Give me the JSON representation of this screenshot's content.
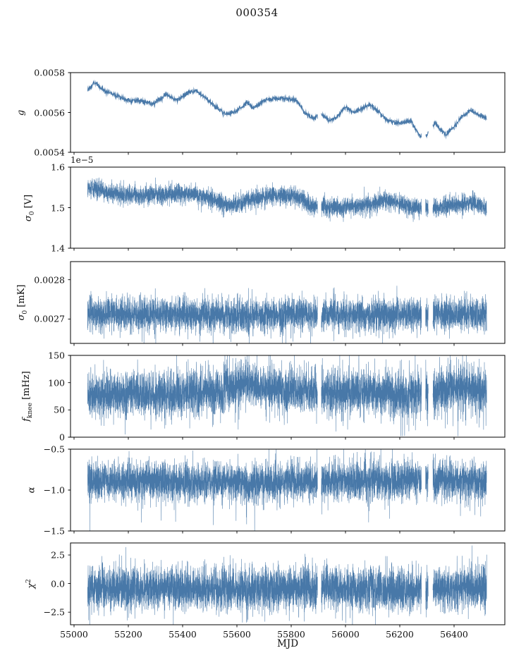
{
  "chart_data": {
    "type": "line",
    "title": "000354",
    "xlabel": "MJD",
    "color": "#4878a8",
    "x_range": [
      54987,
      56587
    ],
    "x_data_range": [
      55050,
      56520
    ],
    "x_ticks": [
      {
        "v": 55000,
        "label": "55000"
      },
      {
        "v": 55200,
        "label": "55200"
      },
      {
        "v": 55400,
        "label": "55400"
      },
      {
        "v": 55600,
        "label": "55600"
      },
      {
        "v": 55800,
        "label": "55800"
      },
      {
        "v": 56000,
        "label": "56000"
      },
      {
        "v": 56200,
        "label": "56200"
      },
      {
        "v": 56400,
        "label": "56400"
      }
    ],
    "gaps": [
      [
        55897,
        55911
      ],
      [
        56280,
        56295
      ],
      [
        56305,
        56322
      ]
    ],
    "legend": "none",
    "grid": false,
    "shared_x": true,
    "panels": [
      {
        "name": "g",
        "ylabel": {
          "pre": "g"
        },
        "ylim": [
          0.0054,
          0.0058
        ],
        "yticks": [
          {
            "v": 0.0058,
            "label": "0.0058"
          },
          {
            "v": 0.0056,
            "label": "0.0056"
          },
          {
            "v": 0.0054,
            "label": "0.0054"
          }
        ],
        "noise": 6e-06,
        "trend": [
          [
            55050,
            0.00571
          ],
          [
            55075,
            0.00575
          ],
          [
            55110,
            0.00571
          ],
          [
            55150,
            0.00569
          ],
          [
            55200,
            0.00566
          ],
          [
            55250,
            0.00566
          ],
          [
            55290,
            0.00564
          ],
          [
            55340,
            0.00569
          ],
          [
            55380,
            0.00566
          ],
          [
            55420,
            0.0057
          ],
          [
            55450,
            0.00571
          ],
          [
            55480,
            0.00568
          ],
          [
            55520,
            0.00563
          ],
          [
            55560,
            0.00559
          ],
          [
            55600,
            0.00561
          ],
          [
            55640,
            0.00565
          ],
          [
            55660,
            0.00562
          ],
          [
            55700,
            0.00566
          ],
          [
            55740,
            0.00567
          ],
          [
            55780,
            0.00567
          ],
          [
            55820,
            0.00566
          ],
          [
            55850,
            0.0056
          ],
          [
            55880,
            0.00557
          ],
          [
            55910,
            0.00559
          ],
          [
            55940,
            0.00556
          ],
          [
            55970,
            0.00558
          ],
          [
            56000,
            0.00563
          ],
          [
            56030,
            0.0056
          ],
          [
            56060,
            0.00562
          ],
          [
            56090,
            0.00564
          ],
          [
            56120,
            0.00561
          ],
          [
            56150,
            0.00556
          ],
          [
            56180,
            0.00555
          ],
          [
            56210,
            0.00555
          ],
          [
            56240,
            0.00556
          ],
          [
            56270,
            0.00549
          ],
          [
            56290,
            0.00547
          ],
          [
            56310,
            0.00551
          ],
          [
            56330,
            0.00555
          ],
          [
            56350,
            0.00551
          ],
          [
            56370,
            0.00549
          ],
          [
            56400,
            0.00553
          ],
          [
            56430,
            0.00558
          ],
          [
            56460,
            0.00561
          ],
          [
            56490,
            0.00559
          ],
          [
            56520,
            0.00557
          ]
        ]
      },
      {
        "name": "sigma0_V",
        "ylabel": {
          "pre": "σ",
          "sub": "0",
          "post": " [V]"
        },
        "offset_text": "1e−5",
        "ylim": [
          1.4,
          1.6
        ],
        "yticks": [
          {
            "v": 1.6,
            "label": "1.6"
          },
          {
            "v": 1.5,
            "label": "1.5"
          },
          {
            "v": 1.4,
            "label": "1.4"
          }
        ],
        "noise": 0.0115,
        "trend": [
          [
            55050,
            1.548
          ],
          [
            55090,
            1.546
          ],
          [
            55130,
            1.537
          ],
          [
            55180,
            1.532
          ],
          [
            55230,
            1.53
          ],
          [
            55280,
            1.532
          ],
          [
            55330,
            1.534
          ],
          [
            55390,
            1.535
          ],
          [
            55440,
            1.533
          ],
          [
            55490,
            1.527
          ],
          [
            55530,
            1.516
          ],
          [
            55570,
            1.504
          ],
          [
            55610,
            1.508
          ],
          [
            55650,
            1.52
          ],
          [
            55700,
            1.528
          ],
          [
            55750,
            1.532
          ],
          [
            55800,
            1.53
          ],
          [
            55840,
            1.522
          ],
          [
            55870,
            1.503
          ],
          [
            55910,
            1.505
          ],
          [
            55950,
            1.5
          ],
          [
            56000,
            1.502
          ],
          [
            56050,
            1.504
          ],
          [
            56100,
            1.51
          ],
          [
            56140,
            1.518
          ],
          [
            56180,
            1.515
          ],
          [
            56220,
            1.505
          ],
          [
            56270,
            1.498
          ],
          [
            56320,
            1.5
          ],
          [
            56370,
            1.503
          ],
          [
            56420,
            1.508
          ],
          [
            56470,
            1.512
          ],
          [
            56520,
            1.498
          ]
        ]
      },
      {
        "name": "sigma0_mK",
        "ylabel": {
          "pre": "σ",
          "sub": "0",
          "post": " [mK]"
        },
        "ylim": [
          0.002638,
          0.002846
        ],
        "yticks": [
          {
            "v": 0.0028,
            "label": "0.0028"
          },
          {
            "v": 0.0027,
            "label": "0.0027"
          }
        ],
        "noise": 2.1e-05,
        "spike": {
          "prob": 0.004,
          "amp": 5e-05,
          "neg_frac": 0.7
        },
        "trend": [
          [
            55050,
            0.002713
          ],
          [
            55200,
            0.002712
          ],
          [
            55400,
            0.002712
          ],
          [
            55560,
            0.00271
          ],
          [
            55640,
            0.002705
          ],
          [
            55680,
            0.002708
          ],
          [
            55800,
            0.002712
          ],
          [
            56000,
            0.002712
          ],
          [
            56200,
            0.002711
          ],
          [
            56350,
            0.002713
          ],
          [
            56520,
            0.002712
          ]
        ]
      },
      {
        "name": "f_knee_mHz",
        "ylabel": {
          "pre": "f",
          "sub": "knee",
          "post": " [mHz]"
        },
        "ylim": [
          0,
          150
        ],
        "yticks": [
          {
            "v": 150,
            "label": "150"
          },
          {
            "v": 100,
            "label": "100"
          },
          {
            "v": 50,
            "label": "50"
          },
          {
            "v": 0,
            "label": "0"
          }
        ],
        "noise": 20,
        "clip": [
          2,
          149.5
        ],
        "spike": {
          "prob": 0.03,
          "amp": 40,
          "neg_frac": 0.35
        },
        "trend": [
          [
            55050,
            76
          ],
          [
            55200,
            80
          ],
          [
            55350,
            78
          ],
          [
            55500,
            82
          ],
          [
            55580,
            92
          ],
          [
            55640,
            98
          ],
          [
            55700,
            88
          ],
          [
            55800,
            86
          ],
          [
            55900,
            82
          ],
          [
            56000,
            86
          ],
          [
            56100,
            84
          ],
          [
            56200,
            76
          ],
          [
            56280,
            80
          ],
          [
            56350,
            84
          ],
          [
            56420,
            90
          ],
          [
            56520,
            86
          ]
        ]
      },
      {
        "name": "alpha",
        "ylabel": {
          "pre": "α"
        },
        "ylim": [
          -1.5,
          -0.5
        ],
        "yticks": [
          {
            "v": -0.5,
            "label": "−0.5"
          },
          {
            "v": -1.0,
            "label": "−1.0"
          },
          {
            "v": -1.5,
            "label": "−1.5"
          }
        ],
        "noise": 0.115,
        "clip": [
          -1.58,
          -0.45
        ],
        "spike": {
          "prob": 0.006,
          "amp": 0.35,
          "neg_frac": 0.85
        },
        "trend": [
          [
            55050,
            -0.88
          ],
          [
            55600,
            -0.9
          ],
          [
            55650,
            -0.93
          ],
          [
            55700,
            -0.9
          ],
          [
            56000,
            -0.88
          ],
          [
            56520,
            -0.88
          ]
        ]
      },
      {
        "name": "chi2",
        "ylabel": {
          "pre": "χ",
          "sup": "2"
        },
        "ylim": [
          -3.6,
          3.55
        ],
        "yticks": [
          {
            "v": 2.5,
            "label": "2.5"
          },
          {
            "v": 0.0,
            "label": "0.0"
          },
          {
            "v": -2.5,
            "label": "−2.5"
          }
        ],
        "noise": 0.95,
        "spike": {
          "prob": 0.005,
          "amp": 1.4,
          "neg_frac": 0.5
        },
        "trend": [
          [
            55050,
            -0.45
          ],
          [
            56520,
            -0.45
          ]
        ]
      }
    ]
  }
}
